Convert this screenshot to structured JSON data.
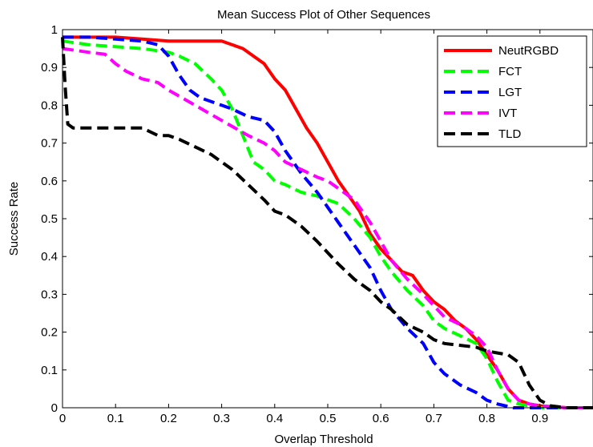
{
  "chart_data": {
    "type": "line",
    "title": "Mean Success Plot of Other Sequences",
    "xlabel": "Overlap Threshold",
    "ylabel": "Success Rate",
    "xlim": [
      0,
      1
    ],
    "ylim": [
      0,
      1
    ],
    "xticks": [
      0,
      0.1,
      0.2,
      0.3,
      0.4,
      0.5,
      0.6,
      0.7,
      0.8,
      0.9
    ],
    "yticks": [
      0,
      0.1,
      0.2,
      0.3,
      0.4,
      0.5,
      0.6,
      0.7,
      0.8,
      0.9,
      1
    ],
    "xtick_labels": [
      "0",
      "0.1",
      "0.2",
      "0.3",
      "0.4",
      "0.5",
      "0.6",
      "0.7",
      "0.8",
      "0.9"
    ],
    "ytick_labels": [
      "0",
      "0.1",
      "0.2",
      "0.3",
      "0.4",
      "0.5",
      "0.6",
      "0.7",
      "0.8",
      "0.9",
      "1"
    ],
    "grid": false,
    "legend_position": "top-right",
    "series": [
      {
        "name": "NeutRGBD",
        "color": "#ff0000",
        "dash": "solid",
        "x": [
          0,
          0.05,
          0.1,
          0.15,
          0.2,
          0.25,
          0.3,
          0.32,
          0.34,
          0.36,
          0.38,
          0.4,
          0.42,
          0.44,
          0.46,
          0.48,
          0.5,
          0.52,
          0.54,
          0.56,
          0.58,
          0.6,
          0.62,
          0.64,
          0.66,
          0.68,
          0.7,
          0.72,
          0.74,
          0.76,
          0.78,
          0.8,
          0.82,
          0.84,
          0.86,
          0.88,
          0.9,
          0.95,
          1.0
        ],
        "y": [
          0.98,
          0.98,
          0.98,
          0.975,
          0.97,
          0.97,
          0.97,
          0.96,
          0.95,
          0.93,
          0.91,
          0.87,
          0.84,
          0.79,
          0.74,
          0.7,
          0.65,
          0.6,
          0.56,
          0.52,
          0.46,
          0.42,
          0.39,
          0.36,
          0.35,
          0.31,
          0.28,
          0.26,
          0.23,
          0.21,
          0.18,
          0.14,
          0.1,
          0.05,
          0.02,
          0.01,
          0.005,
          0,
          0
        ]
      },
      {
        "name": "FCT",
        "color": "#00ff00",
        "dash": "dashed",
        "x": [
          0,
          0.05,
          0.1,
          0.15,
          0.2,
          0.22,
          0.25,
          0.28,
          0.3,
          0.32,
          0.34,
          0.36,
          0.38,
          0.4,
          0.42,
          0.45,
          0.48,
          0.5,
          0.52,
          0.55,
          0.58,
          0.6,
          0.62,
          0.65,
          0.68,
          0.7,
          0.72,
          0.75,
          0.78,
          0.8,
          0.82,
          0.84,
          0.86,
          0.88,
          0.9,
          0.95,
          1.0
        ],
        "y": [
          0.97,
          0.96,
          0.955,
          0.95,
          0.94,
          0.93,
          0.91,
          0.87,
          0.84,
          0.79,
          0.72,
          0.65,
          0.63,
          0.6,
          0.59,
          0.57,
          0.56,
          0.55,
          0.54,
          0.5,
          0.45,
          0.4,
          0.36,
          0.31,
          0.27,
          0.23,
          0.21,
          0.19,
          0.17,
          0.13,
          0.07,
          0.02,
          0.01,
          0.005,
          0,
          0,
          0
        ]
      },
      {
        "name": "LGT",
        "color": "#0000ff",
        "dash": "dashed",
        "x": [
          0,
          0.05,
          0.1,
          0.15,
          0.18,
          0.2,
          0.22,
          0.24,
          0.26,
          0.28,
          0.3,
          0.32,
          0.35,
          0.38,
          0.4,
          0.42,
          0.45,
          0.48,
          0.5,
          0.52,
          0.55,
          0.58,
          0.6,
          0.62,
          0.65,
          0.68,
          0.7,
          0.72,
          0.75,
          0.78,
          0.8,
          0.82,
          0.85,
          0.9,
          1.0
        ],
        "y": [
          0.98,
          0.98,
          0.975,
          0.97,
          0.96,
          0.93,
          0.88,
          0.84,
          0.82,
          0.81,
          0.8,
          0.79,
          0.77,
          0.76,
          0.73,
          0.68,
          0.62,
          0.57,
          0.53,
          0.49,
          0.43,
          0.37,
          0.31,
          0.26,
          0.21,
          0.17,
          0.12,
          0.09,
          0.06,
          0.04,
          0.02,
          0.01,
          0,
          0,
          0
        ]
      },
      {
        "name": "IVT",
        "color": "#ff00ff",
        "dash": "dashed",
        "x": [
          0,
          0.05,
          0.08,
          0.1,
          0.12,
          0.15,
          0.18,
          0.2,
          0.25,
          0.3,
          0.35,
          0.38,
          0.4,
          0.42,
          0.45,
          0.48,
          0.5,
          0.52,
          0.55,
          0.58,
          0.6,
          0.62,
          0.65,
          0.68,
          0.7,
          0.72,
          0.75,
          0.78,
          0.8,
          0.82,
          0.84,
          0.86,
          0.88,
          0.9,
          0.95,
          1.0
        ],
        "y": [
          0.95,
          0.94,
          0.935,
          0.91,
          0.89,
          0.87,
          0.86,
          0.84,
          0.8,
          0.76,
          0.72,
          0.7,
          0.68,
          0.65,
          0.63,
          0.61,
          0.6,
          0.58,
          0.55,
          0.49,
          0.44,
          0.39,
          0.34,
          0.3,
          0.27,
          0.24,
          0.22,
          0.19,
          0.16,
          0.1,
          0.05,
          0.02,
          0.01,
          0.005,
          0,
          0
        ]
      },
      {
        "name": "TLD",
        "color": "#000000",
        "dash": "dashed",
        "x": [
          0,
          0.005,
          0.01,
          0.02,
          0.05,
          0.1,
          0.15,
          0.18,
          0.2,
          0.22,
          0.25,
          0.28,
          0.3,
          0.32,
          0.35,
          0.38,
          0.4,
          0.42,
          0.45,
          0.48,
          0.5,
          0.52,
          0.55,
          0.58,
          0.6,
          0.62,
          0.65,
          0.68,
          0.7,
          0.72,
          0.75,
          0.78,
          0.8,
          0.82,
          0.84,
          0.86,
          0.88,
          0.9,
          0.92,
          0.95,
          1.0
        ],
        "y": [
          0.98,
          0.85,
          0.75,
          0.74,
          0.74,
          0.74,
          0.74,
          0.72,
          0.72,
          0.71,
          0.69,
          0.67,
          0.65,
          0.63,
          0.59,
          0.55,
          0.52,
          0.51,
          0.48,
          0.44,
          0.41,
          0.38,
          0.34,
          0.31,
          0.28,
          0.26,
          0.22,
          0.2,
          0.18,
          0.17,
          0.165,
          0.16,
          0.15,
          0.145,
          0.14,
          0.12,
          0.06,
          0.02,
          0.005,
          0,
          0
        ]
      }
    ]
  }
}
